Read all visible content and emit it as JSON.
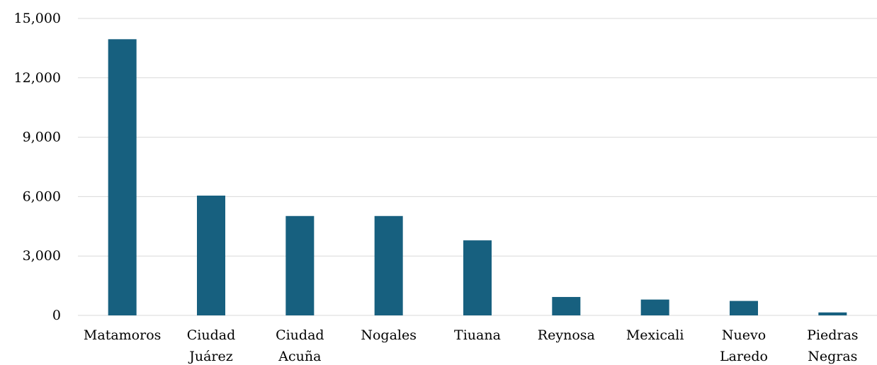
{
  "chart_data": {
    "type": "bar",
    "categories": [
      [
        "Matamoros"
      ],
      [
        "Ciudad",
        "Juárez"
      ],
      [
        "Ciudad",
        "Acuña"
      ],
      [
        "Nogales"
      ],
      [
        "Tiuana"
      ],
      [
        "Reynosa"
      ],
      [
        "Mexicali"
      ],
      [
        "Nuevo",
        "Laredo"
      ],
      [
        "Piedras",
        "Negras"
      ]
    ],
    "values": [
      13950,
      6050,
      5020,
      5020,
      3790,
      930,
      800,
      730,
      150
    ],
    "ylim": [
      0,
      15000
    ],
    "yticks": [
      "0",
      "3,000",
      "6,000",
      "9,000",
      "12,000",
      "15,000"
    ],
    "ytick_values": [
      0,
      3000,
      6000,
      9000,
      12000,
      15000
    ],
    "title": "",
    "xlabel": "",
    "ylabel": "",
    "grid": true,
    "legend": "none",
    "colors": {
      "bar": "#17607f",
      "grid": "#d9d9d9",
      "text": "#000000"
    }
  }
}
